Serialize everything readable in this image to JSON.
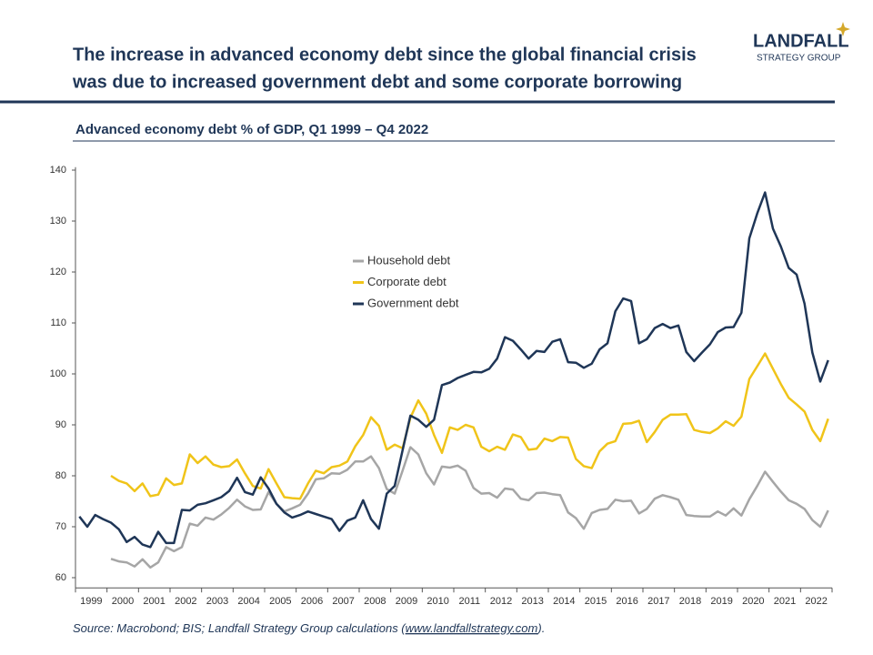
{
  "header": {
    "logo": [
      "LANDFALL",
      "STRATEGY GROUP"
    ]
  },
  "chart_data": {
    "type": "line",
    "title": [
      "The increase in advanced economy debt since the global financial crisis",
      "was due to increased government debt and some corporate borrowing"
    ],
    "subtitle": "Advanced economy debt % of GDP, Q1 1999 – Q4 2022",
    "source": {
      "before": "Source: Macrobond; BIS; Landfall Strategy Group calculations (",
      "link": "www.landfallstrategy.com",
      "after": ")."
    },
    "categories": [
      "1999",
      null,
      null,
      null,
      "2000",
      null,
      null,
      null,
      "2001",
      null,
      null,
      null,
      "2002",
      null,
      null,
      null,
      "2003",
      null,
      null,
      null,
      "2004",
      null,
      null,
      null,
      "2005",
      null,
      null,
      null,
      "2006",
      null,
      null,
      null,
      "2007",
      null,
      null,
      null,
      "2008",
      null,
      null,
      null,
      "2009",
      null,
      null,
      null,
      "2010",
      null,
      null,
      null,
      "2011",
      null,
      null,
      null,
      "2012",
      null,
      null,
      null,
      "2013",
      null,
      null,
      null,
      "2014",
      null,
      null,
      null,
      "2015",
      null,
      null,
      null,
      "2016",
      null,
      null,
      null,
      "2017",
      null,
      null,
      null,
      "2018",
      null,
      null,
      null,
      "2019",
      null,
      null,
      null,
      "2020",
      null,
      null,
      null,
      "2021",
      null,
      null,
      null,
      "2022",
      null,
      null,
      null
    ],
    "series": [
      {
        "name": "Household debt",
        "color": "#a6a6a6",
        "values": [
          null,
          null,
          null,
          null,
          63.7,
          63.2,
          63,
          62.2,
          63.6,
          62,
          63,
          66,
          65.2,
          66,
          70.6,
          70.2,
          71.8,
          71.4,
          72.4,
          73.7,
          75.3,
          74,
          73.3,
          73.4,
          76.8,
          74.5,
          73,
          73.6,
          74.3,
          76.5,
          79.3,
          79.5,
          80.5,
          80.4,
          81.2,
          82.8,
          82.8,
          83.8,
          81.5,
          77.4,
          76.5,
          81,
          85.6,
          84.2,
          80.5,
          78.3,
          81.8,
          81.6,
          82,
          81,
          77.6,
          76.5,
          76.6,
          75.7,
          77.5,
          77.3,
          75.5,
          75.2,
          76.6,
          76.7,
          76.4,
          76.2,
          72.8,
          71.7,
          69.6,
          72.7,
          73.3,
          73.5,
          75.3,
          75,
          75.1,
          72.6,
          73.5,
          75.5,
          76.2,
          75.8,
          75.3,
          72.3,
          72.1,
          72,
          72,
          73,
          72.2,
          73.6,
          72.2,
          75.4,
          78,
          80.8,
          78.8,
          76.9,
          75.2,
          74.5,
          73.5,
          71.3,
          70,
          73.2
        ]
      },
      {
        "name": "Corporate debt",
        "color": "#f0c419",
        "values": [
          null,
          null,
          null,
          null,
          80,
          79,
          78.5,
          77,
          78.5,
          76,
          76.3,
          79.5,
          78.2,
          78.5,
          84.2,
          82.5,
          83.8,
          82.2,
          81.7,
          81.9,
          83.2,
          80.5,
          78,
          77.5,
          81.3,
          78.5,
          75.8,
          75.6,
          75.5,
          78.5,
          81,
          80.5,
          81.7,
          82,
          82.8,
          85.8,
          88,
          91.5,
          89.8,
          85.1,
          86.1,
          85.4,
          91.4,
          94.8,
          92.2,
          88,
          84.5,
          89.5,
          89,
          90,
          89.5,
          85.7,
          84.8,
          85.7,
          85.1,
          88.1,
          87.6,
          85.1,
          85.3,
          87.3,
          86.8,
          87.6,
          87.5,
          83.3,
          81.9,
          81.5,
          84.8,
          86.3,
          86.8,
          90.2,
          90.3,
          90.8,
          86.6,
          88.6,
          91,
          92,
          92,
          92.1,
          89,
          88.6,
          88.4,
          89.3,
          90.7,
          89.8,
          91.6,
          99,
          101.5,
          104,
          101,
          98,
          95.3,
          94,
          92.6,
          89,
          86.8,
          91.2
        ]
      },
      {
        "name": "Government debt",
        "color": "#1f3657",
        "values": [
          72,
          70,
          72.3,
          71.5,
          70.8,
          69.5,
          67,
          68,
          66.5,
          66,
          69,
          66.8,
          66.8,
          73.3,
          73.2,
          74.3,
          74.6,
          75.2,
          75.8,
          77,
          79.6,
          76.8,
          76.3,
          79.7,
          77.5,
          74.5,
          72.8,
          71.8,
          72.3,
          73,
          72.5,
          72,
          71.5,
          69.2,
          71.2,
          71.8,
          75.2,
          71.5,
          69.6,
          76.5,
          78,
          85,
          91.8,
          91,
          89.6,
          91,
          97.8,
          98.3,
          99.2,
          99.8,
          100.4,
          100.3,
          101,
          103,
          107.2,
          106.5,
          104.8,
          103,
          104.5,
          104.3,
          106.3,
          106.8,
          102.3,
          102.2,
          101.2,
          102,
          104.8,
          106,
          112.3,
          114.8,
          114.3,
          106,
          106.8,
          109,
          109.8,
          109,
          109.5,
          104.3,
          102.5,
          104.2,
          105.8,
          108.2,
          109.1,
          109.2,
          112,
          126.6,
          131.5,
          135.6,
          128.5,
          125,
          120.8,
          119.5,
          113.8,
          104.2,
          98.5,
          102.7
        ]
      }
    ],
    "ylim": [
      58,
      142
    ],
    "yticks": [
      60,
      70,
      80,
      90,
      100,
      110,
      120,
      130,
      140
    ],
    "grid": false
  }
}
